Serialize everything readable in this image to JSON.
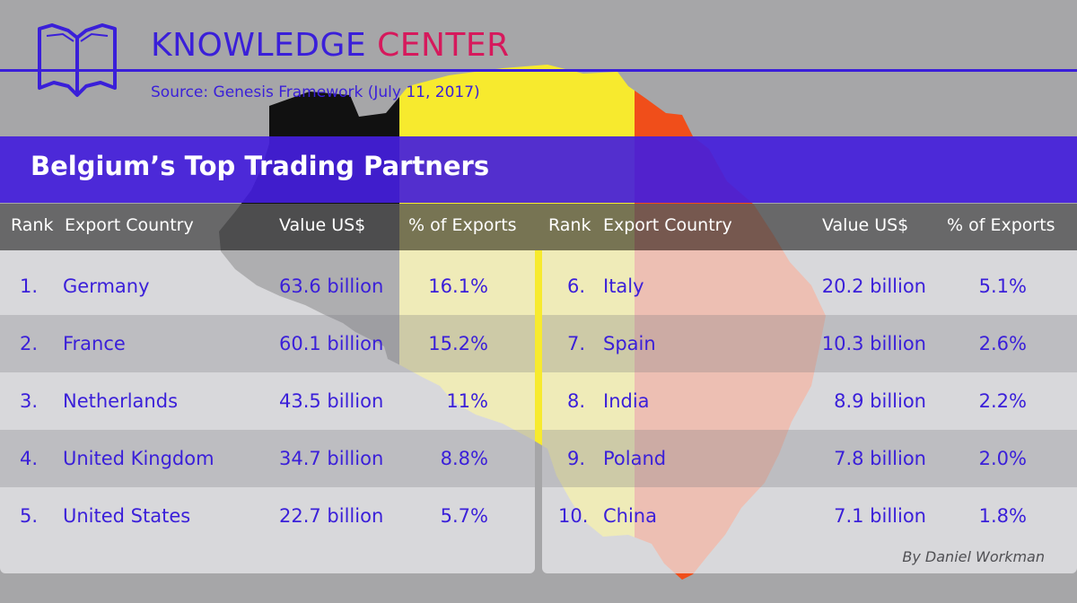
{
  "header": {
    "brand_primary": "KNOWLEDGE",
    "brand_secondary": "CENTER",
    "source": "Source:  Genesis Framework (July 11, 2017)"
  },
  "title": "Belgium’s Top Trading Partners",
  "columns": [
    "Rank",
    "Export Country",
    "Value US$",
    "% of Exports"
  ],
  "tables": [
    {
      "rows": [
        {
          "rank": "1.",
          "country": "Germany",
          "value": "63.6 billion",
          "share": "16.1%"
        },
        {
          "rank": "2.",
          "country": "France",
          "value": "60.1 billion",
          "share": "15.2%"
        },
        {
          "rank": "3.",
          "country": "Netherlands",
          "value": "43.5 billion",
          "share": "11%"
        },
        {
          "rank": "4.",
          "country": "United Kingdom",
          "value": "34.7 billion",
          "share": "8.8%"
        },
        {
          "rank": "5.",
          "country": "United States",
          "value": "22.7 billion",
          "share": "5.7%"
        }
      ]
    },
    {
      "rows": [
        {
          "rank": "6.",
          "country": "Italy",
          "value": "20.2 billion",
          "share": "5.1%"
        },
        {
          "rank": "7.",
          "country": "Spain",
          "value": "10.3 billion",
          "share": "2.6%"
        },
        {
          "rank": "8.",
          "country": "India",
          "value": "8.9 billion",
          "share": "2.2%"
        },
        {
          "rank": "9.",
          "country": "Poland",
          "value": "7.8 billion",
          "share": "2.0%"
        },
        {
          "rank": "10.",
          "country": "China",
          "value": "7.1 billion",
          "share": "1.8%"
        }
      ]
    }
  ],
  "byline": "By Daniel Workman",
  "colors": {
    "brand_blue": "#3a1fd9",
    "brand_red": "#d6195c",
    "flag_black": "#111111",
    "flag_yellow": "#f7ea2e",
    "flag_red": "#f04e1a"
  },
  "icons": [
    "open-book-icon",
    "belgium-map"
  ]
}
